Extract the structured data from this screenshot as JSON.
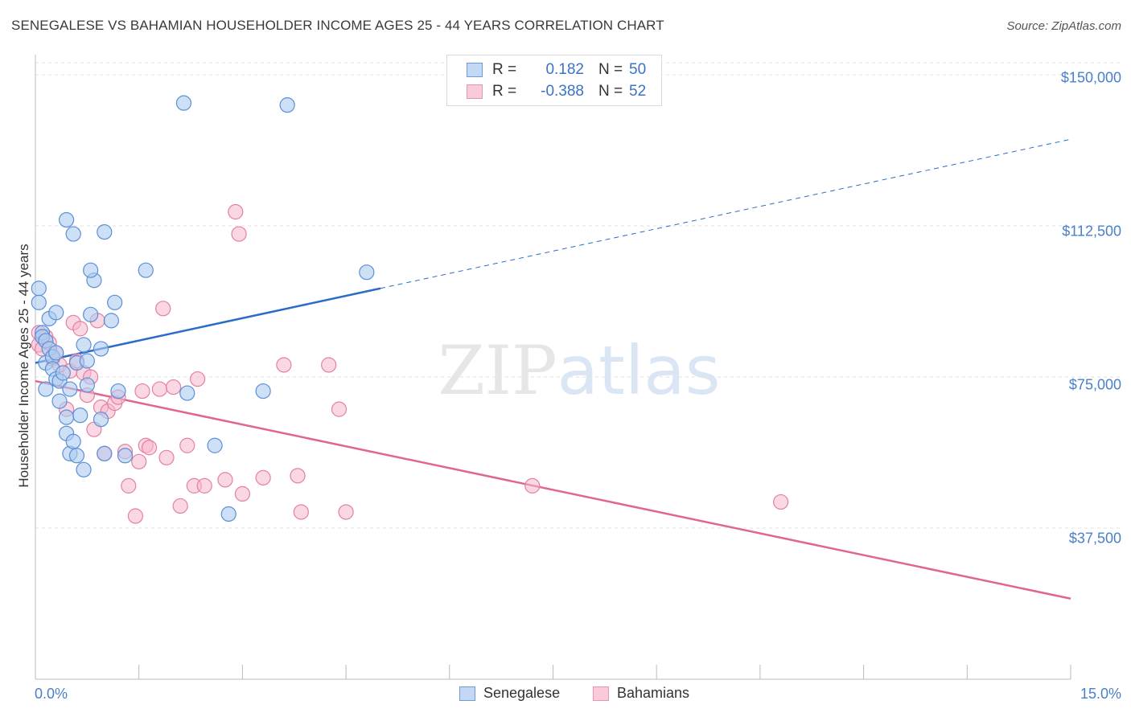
{
  "title": "SENEGALESE VS BAHAMIAN HOUSEHOLDER INCOME AGES 25 - 44 YEARS CORRELATION CHART",
  "source": "Source: ZipAtlas.com",
  "watermark": "ZIPatlas",
  "colors": {
    "senegalese_fill": "#aecbf0",
    "senegalese_stroke": "#5b8fd6",
    "senegalese_line": "#2a6cc7",
    "bahamian_fill": "#f6b8cc",
    "bahamian_stroke": "#e57fa1",
    "bahamian_line": "#e0668f",
    "axis_text": "#4a7fc9"
  },
  "legend": {
    "r_label": "R =",
    "n_label": "N =",
    "rows": [
      {
        "r": "0.182",
        "n": "50"
      },
      {
        "r": "-0.388",
        "n": "52"
      }
    ]
  },
  "chart_data": {
    "type": "scatter",
    "title": "SENEGALESE VS BAHAMIAN HOUSEHOLDER INCOME AGES 25 - 44 YEARS CORRELATION CHART",
    "xlabel": "",
    "ylabel": "Householder Income Ages 25 - 44 years",
    "xlim": [
      0,
      15
    ],
    "ylim": [
      0,
      155000
    ],
    "x_tick_labels": [
      "0.0%",
      "15.0%"
    ],
    "y_ticks": [
      37500,
      75000,
      112500,
      150000
    ],
    "y_tick_labels": [
      "$37,500",
      "$75,000",
      "$112,500",
      "$150,000"
    ],
    "grid": true,
    "legend_position": "top-center",
    "series": [
      {
        "name": "Senegalese",
        "r": 0.182,
        "n": 50,
        "trend": {
          "x0": 0,
          "y0": 78500,
          "x1": 5,
          "y1": 97000,
          "dashed_to_x": 15,
          "dashed_to_y": 134000
        },
        "points": [
          [
            0.05,
            97000
          ],
          [
            0.05,
            93500
          ],
          [
            0.1,
            86000
          ],
          [
            0.1,
            85000
          ],
          [
            0.15,
            84000
          ],
          [
            0.15,
            78500
          ],
          [
            0.2,
            82000
          ],
          [
            0.2,
            89500
          ],
          [
            0.25,
            80000
          ],
          [
            0.25,
            77000
          ],
          [
            0.3,
            91000
          ],
          [
            0.3,
            74500
          ],
          [
            0.35,
            69000
          ],
          [
            0.35,
            74000
          ],
          [
            0.4,
            76000
          ],
          [
            0.45,
            65000
          ],
          [
            0.45,
            61000
          ],
          [
            0.5,
            56000
          ],
          [
            0.5,
            72000
          ],
          [
            0.55,
            59000
          ],
          [
            0.6,
            55500
          ],
          [
            0.6,
            78500
          ],
          [
            0.65,
            65500
          ],
          [
            0.7,
            52000
          ],
          [
            0.7,
            83000
          ],
          [
            0.75,
            79000
          ],
          [
            0.75,
            73000
          ],
          [
            0.8,
            90500
          ],
          [
            0.85,
            99000
          ],
          [
            0.95,
            64500
          ],
          [
            1.0,
            111000
          ],
          [
            1.0,
            56000
          ],
          [
            1.1,
            89000
          ],
          [
            1.15,
            93500
          ],
          [
            1.2,
            71500
          ],
          [
            0.55,
            110500
          ],
          [
            0.45,
            114000
          ],
          [
            0.8,
            101500
          ],
          [
            1.6,
            101500
          ],
          [
            2.2,
            71000
          ],
          [
            2.15,
            143000
          ],
          [
            2.6,
            58000
          ],
          [
            2.8,
            41000
          ],
          [
            3.3,
            71500
          ],
          [
            3.65,
            142500
          ],
          [
            4.8,
            101000
          ],
          [
            1.3,
            55500
          ],
          [
            0.95,
            82000
          ],
          [
            0.15,
            72000
          ],
          [
            0.3,
            81000
          ]
        ]
      },
      {
        "name": "Bahamians",
        "r": -0.388,
        "n": 52,
        "trend": {
          "x0": 0,
          "y0": 74000,
          "x1": 15,
          "y1": 20000
        },
        "points": [
          [
            0.05,
            86000
          ],
          [
            0.05,
            83000
          ],
          [
            0.1,
            82000
          ],
          [
            0.15,
            85000
          ],
          [
            0.2,
            83500
          ],
          [
            0.25,
            79500
          ],
          [
            0.3,
            81000
          ],
          [
            0.35,
            78000
          ],
          [
            0.45,
            67000
          ],
          [
            0.5,
            76500
          ],
          [
            0.55,
            88500
          ],
          [
            0.6,
            79000
          ],
          [
            0.65,
            87000
          ],
          [
            0.7,
            76000
          ],
          [
            0.75,
            70500
          ],
          [
            0.8,
            75000
          ],
          [
            0.85,
            62000
          ],
          [
            0.9,
            89000
          ],
          [
            0.95,
            67500
          ],
          [
            1.0,
            56000
          ],
          [
            1.05,
            66500
          ],
          [
            1.15,
            68500
          ],
          [
            1.2,
            70000
          ],
          [
            1.3,
            56500
          ],
          [
            1.35,
            48000
          ],
          [
            1.45,
            40500
          ],
          [
            1.5,
            54000
          ],
          [
            1.55,
            71500
          ],
          [
            1.6,
            58000
          ],
          [
            1.65,
            57500
          ],
          [
            1.8,
            72000
          ],
          [
            1.85,
            92000
          ],
          [
            1.9,
            55000
          ],
          [
            2.0,
            72500
          ],
          [
            2.1,
            43000
          ],
          [
            2.2,
            58000
          ],
          [
            2.3,
            48000
          ],
          [
            2.35,
            74500
          ],
          [
            2.45,
            48000
          ],
          [
            2.75,
            49500
          ],
          [
            2.9,
            116000
          ],
          [
            2.95,
            110500
          ],
          [
            3.0,
            46000
          ],
          [
            3.3,
            50000
          ],
          [
            3.6,
            78000
          ],
          [
            3.8,
            50500
          ],
          [
            3.85,
            41500
          ],
          [
            4.25,
            78000
          ],
          [
            4.4,
            67000
          ],
          [
            4.5,
            41500
          ],
          [
            7.2,
            48000
          ],
          [
            10.8,
            44000
          ]
        ]
      }
    ]
  }
}
